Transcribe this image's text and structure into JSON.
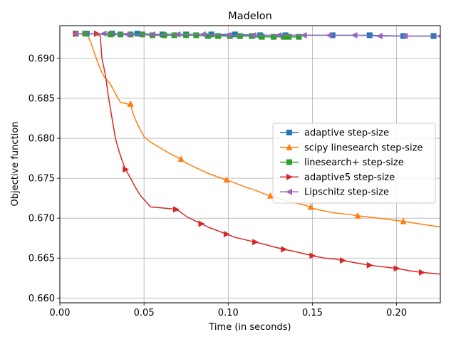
{
  "chart_data": {
    "type": "line",
    "title": "Madelon",
    "xlabel": "Time (in seconds)",
    "ylabel": "Objective function",
    "xlim": [
      0,
      0.226
    ],
    "ylim": [
      0.6594,
      0.6941
    ],
    "xticks": [
      0.0,
      0.05,
      0.1,
      0.15,
      0.2
    ],
    "xtick_labels": [
      "0.00",
      "0.05",
      "0.10",
      "0.15",
      "0.20"
    ],
    "yticks": [
      0.66,
      0.665,
      0.67,
      0.675,
      0.68,
      0.685,
      0.69
    ],
    "ytick_labels": [
      "0.660",
      "0.665",
      "0.670",
      "0.675",
      "0.680",
      "0.685",
      "0.690"
    ],
    "grid": true,
    "legend_position": "center-right",
    "series": [
      {
        "name": "adaptive step-size",
        "color": "#1f77b4",
        "marker": "square",
        "x": [
          0.0095,
          0.016,
          0.03,
          0.031,
          0.046,
          0.061,
          0.075,
          0.09,
          0.104,
          0.119,
          0.134,
          0.148,
          0.162,
          0.184,
          0.204,
          0.222
        ],
        "y": [
          0.6931,
          0.6931,
          0.693,
          0.6931,
          0.6931,
          0.693,
          0.693,
          0.693,
          0.693,
          0.6929,
          0.6929,
          0.6929,
          0.6929,
          0.6929,
          0.6928,
          0.6928
        ],
        "marker_x": [
          0.0095,
          0.016,
          0.031,
          0.046,
          0.061,
          0.075,
          0.09,
          0.104,
          0.119,
          0.134,
          0.162,
          0.184,
          0.204,
          0.222
        ]
      },
      {
        "name": "scipy linesearch step-size",
        "color": "#ff7f0e",
        "marker": "triangle-up",
        "x": [
          0.0095,
          0.016,
          0.018,
          0.02,
          0.022,
          0.024,
          0.026,
          0.028,
          0.03,
          0.032,
          0.034,
          0.036,
          0.038,
          0.04,
          0.042,
          0.044,
          0.046,
          0.048,
          0.05,
          0.054,
          0.058,
          0.062,
          0.066,
          0.07,
          0.072,
          0.076,
          0.08,
          0.084,
          0.088,
          0.092,
          0.096,
          0.099,
          0.104,
          0.11,
          0.116,
          0.122,
          0.128,
          0.134,
          0.14,
          0.146,
          0.149,
          0.155,
          0.162,
          0.17,
          0.177,
          0.185,
          0.193,
          0.2,
          0.204,
          0.21,
          0.216,
          0.226
        ],
        "y": [
          0.6931,
          0.693,
          0.6922,
          0.691,
          0.6898,
          0.6887,
          0.6878,
          0.6873,
          0.6868,
          0.686,
          0.6852,
          0.6845,
          0.6844,
          0.6843,
          0.6842,
          0.6828,
          0.6818,
          0.681,
          0.6802,
          0.6795,
          0.679,
          0.6785,
          0.678,
          0.6776,
          0.6773,
          0.6768,
          0.6764,
          0.676,
          0.6756,
          0.6753,
          0.675,
          0.6748,
          0.6744,
          0.6739,
          0.6735,
          0.673,
          0.6726,
          0.6722,
          0.6719,
          0.6716,
          0.6713,
          0.671,
          0.6707,
          0.6705,
          0.6703,
          0.6701,
          0.6699,
          0.6697,
          0.6696,
          0.6694,
          0.6692,
          0.6689
        ],
        "marker_x": [
          0.0095,
          0.042,
          0.072,
          0.099,
          0.125,
          0.149,
          0.177,
          0.204
        ],
        "marker_y": [
          0.6931,
          0.6843,
          0.6774,
          0.6748,
          0.6728,
          0.6714,
          0.6703,
          0.6696
        ]
      },
      {
        "name": "linesearch+ step-size",
        "color": "#2ca02c",
        "marker": "square",
        "x": [
          0.0095,
          0.015,
          0.03,
          0.036,
          0.042,
          0.049,
          0.055,
          0.062,
          0.068,
          0.075,
          0.081,
          0.088,
          0.094,
          0.101,
          0.107,
          0.114,
          0.12,
          0.127,
          0.133,
          0.136,
          0.142
        ],
        "y": [
          0.6931,
          0.6931,
          0.693,
          0.693,
          0.693,
          0.693,
          0.6929,
          0.6929,
          0.6929,
          0.6929,
          0.6929,
          0.6928,
          0.6928,
          0.6928,
          0.6928,
          0.6928,
          0.6927,
          0.6927,
          0.6927,
          0.6927,
          0.6927
        ],
        "marker_x": [
          0.0095,
          0.015,
          0.03,
          0.036,
          0.042,
          0.049,
          0.055,
          0.062,
          0.068,
          0.075,
          0.081,
          0.088,
          0.094,
          0.101,
          0.107,
          0.114,
          0.12,
          0.127,
          0.133,
          0.136,
          0.142
        ]
      },
      {
        "name": "adaptive5 step-size",
        "color": "#d62728",
        "marker": "triangle-right",
        "x": [
          0.0095,
          0.021,
          0.024,
          0.025,
          0.027,
          0.029,
          0.031,
          0.033,
          0.035,
          0.037,
          0.039,
          0.042,
          0.045,
          0.048,
          0.051,
          0.054,
          0.06,
          0.065,
          0.069,
          0.072,
          0.076,
          0.08,
          0.084,
          0.089,
          0.094,
          0.099,
          0.104,
          0.11,
          0.116,
          0.122,
          0.127,
          0.133,
          0.14,
          0.15,
          0.157,
          0.163,
          0.168,
          0.176,
          0.184,
          0.192,
          0.2,
          0.208,
          0.215,
          0.226
        ],
        "y": [
          0.6931,
          0.6931,
          0.6928,
          0.69,
          0.688,
          0.685,
          0.6825,
          0.68,
          0.6785,
          0.6772,
          0.6761,
          0.675,
          0.6738,
          0.6728,
          0.6721,
          0.6714,
          0.6713,
          0.6712,
          0.6711,
          0.6707,
          0.6701,
          0.6697,
          0.6693,
          0.6688,
          0.6684,
          0.668,
          0.6676,
          0.6673,
          0.667,
          0.6667,
          0.6664,
          0.6661,
          0.6658,
          0.6653,
          0.665,
          0.6649,
          0.6647,
          0.6644,
          0.6641,
          0.6639,
          0.6637,
          0.6634,
          0.6632,
          0.663
        ],
        "marker_x": [
          0.0095,
          0.022,
          0.039,
          0.069,
          0.084,
          0.099,
          0.116,
          0.133,
          0.15,
          0.168,
          0.184,
          0.2,
          0.215
        ],
        "marker_y": [
          0.6931,
          0.6931,
          0.6761,
          0.6711,
          0.6693,
          0.668,
          0.667,
          0.6661,
          0.6653,
          0.6647,
          0.6641,
          0.6637,
          0.6632
        ]
      },
      {
        "name": "Lipschitz step-size",
        "color": "#9467bd",
        "marker": "triangle-left",
        "x": [
          0.0095,
          0.026,
          0.04,
          0.055,
          0.07,
          0.085,
          0.1,
          0.115,
          0.13,
          0.145,
          0.16,
          0.175,
          0.19,
          0.205,
          0.226
        ],
        "y": [
          0.6931,
          0.6931,
          0.693,
          0.693,
          0.693,
          0.693,
          0.6929,
          0.6929,
          0.6929,
          0.6929,
          0.6929,
          0.6929,
          0.6928,
          0.6928,
          0.6928
        ],
        "marker_x": [
          0.0095,
          0.026,
          0.04,
          0.055,
          0.07,
          0.085,
          0.1,
          0.115,
          0.13,
          0.145,
          0.16,
          0.175,
          0.19,
          0.205,
          0.226
        ]
      }
    ]
  }
}
